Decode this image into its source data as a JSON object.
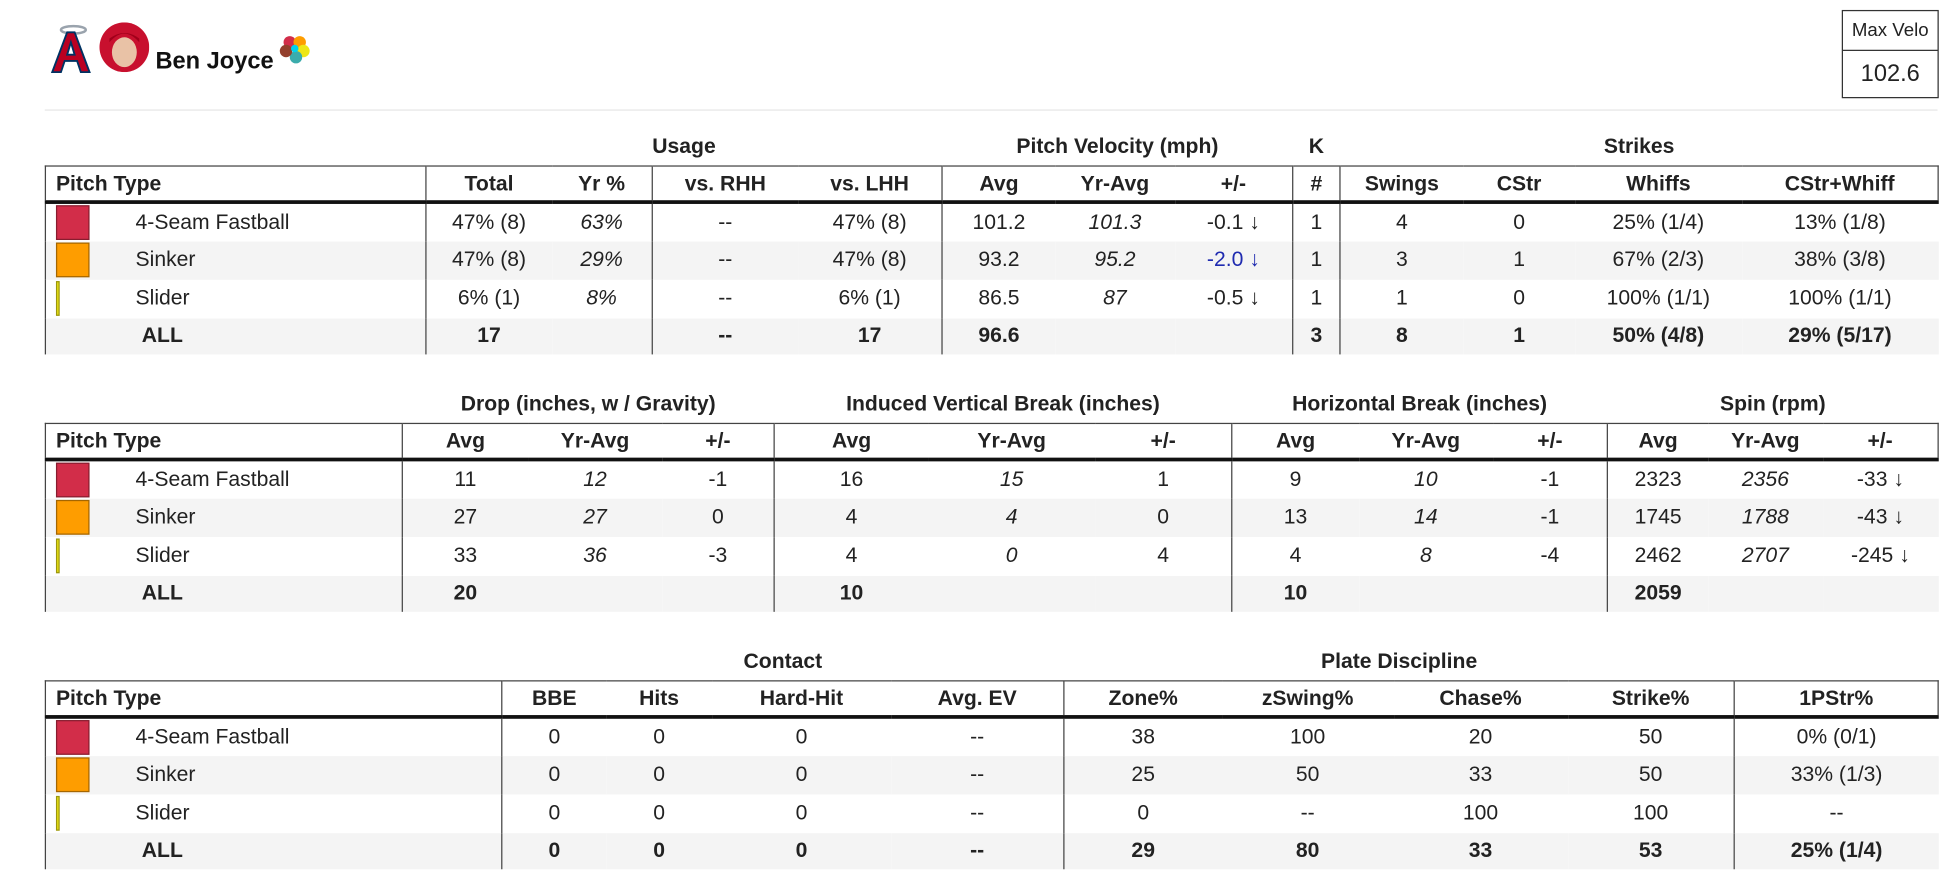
{
  "header": {
    "player": "Ben Joyce",
    "max_velo_label": "Max Velo",
    "max_velo": "102.6"
  },
  "tables": [
    {
      "column_groups": [
        {
          "columns": [
            "Pitch Type"
          ]
        },
        {
          "label": "Usage",
          "columns": [
            "Total",
            "Yr %",
            "vs. RHH",
            "vs. LHH"
          ]
        },
        {
          "label": "Pitch Velocity (mph)",
          "columns": [
            "Avg",
            "Yr-Avg",
            "+/-"
          ]
        },
        {
          "label": "K",
          "columns": [
            "#"
          ]
        },
        {
          "label": "Strikes",
          "columns": [
            "Swings",
            "CStr",
            "Whiffs",
            "CStr+Whiff"
          ]
        }
      ],
      "rows": [
        {
          "pitch": "4-Seam Fastball",
          "color": "#d22d49",
          "cells": [
            "47% (8)",
            "63%",
            "--",
            "47% (8)",
            "101.2",
            "101.3",
            "-0.1 ↓",
            "1",
            "4",
            "0",
            "25% (1/4)",
            "13% (1/8)"
          ]
        },
        {
          "pitch": "Sinker",
          "color": "#fe9d00",
          "cells": [
            "47% (8)",
            "29%",
            "--",
            "47% (8)",
            "93.2",
            "95.2",
            {
              "text": "-2.0 ↓",
              "color": "#1f2bb0"
            },
            "1",
            "3",
            "1",
            "67% (2/3)",
            "38% (3/8)"
          ]
        },
        {
          "pitch": "Slider",
          "color": "#eee716",
          "cells": [
            "6% (1)",
            "8%",
            "--",
            "6% (1)",
            "86.5",
            "87",
            "-0.5 ↓",
            "1",
            "1",
            "0",
            "100% (1/1)",
            "100% (1/1)"
          ]
        },
        {
          "pitch": "ALL",
          "cells": [
            "17",
            null,
            "--",
            "17",
            "96.6",
            null,
            null,
            "3",
            "8",
            "1",
            "50% (4/8)",
            "29% (5/17)"
          ]
        }
      ]
    },
    {
      "column_groups": [
        {
          "columns": [
            "Pitch Type"
          ]
        },
        {
          "label": "Drop (inches, w / Gravity)",
          "columns": [
            "Avg",
            "Yr-Avg",
            "+/-"
          ]
        },
        {
          "label": "Induced Vertical Break (inches)",
          "columns": [
            "Avg",
            "Yr-Avg",
            "+/-"
          ]
        },
        {
          "label": "Horizontal Break (inches)",
          "columns": [
            "Avg",
            "Yr-Avg",
            "+/-"
          ]
        },
        {
          "label": "Spin (rpm)",
          "columns": [
            "Avg",
            "Yr-Avg",
            "+/-"
          ]
        }
      ],
      "rows": [
        {
          "pitch": "4-Seam Fastball",
          "color": "#d22d49",
          "cells": [
            "11",
            "12",
            "-1",
            "16",
            "15",
            "1",
            "9",
            "10",
            "-1",
            "2323",
            "2356",
            "-33 ↓"
          ]
        },
        {
          "pitch": "Sinker",
          "color": "#fe9d00",
          "cells": [
            "27",
            "27",
            "0",
            "4",
            "4",
            "0",
            "13",
            "14",
            "-1",
            "1745",
            "1788",
            "-43 ↓"
          ]
        },
        {
          "pitch": "Slider",
          "color": "#eee716",
          "cells": [
            "33",
            "36",
            "-3",
            "4",
            "0",
            "4",
            "4",
            "8",
            "-4",
            "2462",
            "2707",
            "-245 ↓"
          ]
        },
        {
          "pitch": "ALL",
          "cells": [
            "20",
            null,
            null,
            "10",
            null,
            null,
            "10",
            null,
            null,
            "2059",
            null,
            null
          ]
        }
      ]
    },
    {
      "column_groups": [
        {
          "columns": [
            "Pitch Type"
          ]
        },
        {
          "label": "Contact",
          "columns": [
            "BBE",
            "Hits",
            "Hard-Hit",
            "Avg. EV"
          ]
        },
        {
          "label": "Plate Discipline",
          "columns": [
            "Zone%",
            "zSwing%",
            "Chase%",
            "Strike%"
          ]
        },
        {
          "columns": [
            "1PStr%"
          ]
        }
      ],
      "rows": [
        {
          "pitch": "4-Seam Fastball",
          "color": "#d22d49",
          "cells": [
            "0",
            "0",
            "0",
            "--",
            "38",
            "100",
            "20",
            "50",
            "0% (0/1)"
          ]
        },
        {
          "pitch": "Sinker",
          "color": "#fe9d00",
          "cells": [
            "0",
            "0",
            "0",
            "--",
            "25",
            "50",
            "33",
            "50",
            "33% (1/3)"
          ]
        },
        {
          "pitch": "Slider",
          "color": "#eee716",
          "cells": [
            "0",
            "0",
            "0",
            "--",
            "0",
            "--",
            "100",
            "100",
            "--"
          ]
        },
        {
          "pitch": "ALL",
          "cells": [
            "0",
            "0",
            "0",
            "--",
            "29",
            "80",
            "33",
            "53",
            "25% (1/4)"
          ]
        }
      ]
    }
  ]
}
